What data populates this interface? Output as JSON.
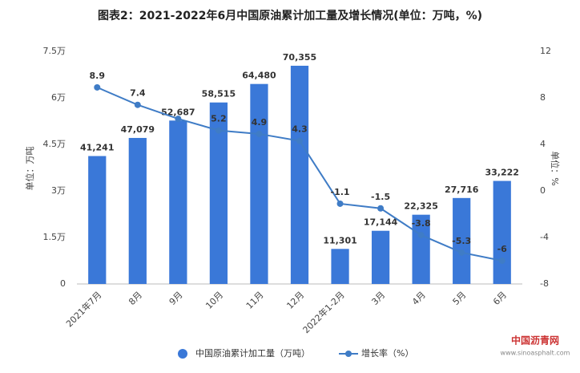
{
  "chart_data": {
    "type": "bar-line",
    "title": "图表2：2021-2022年6月中国原油累计加工量及增长情况(单位：万吨，%)",
    "ylabel": "单位：万吨",
    "y2label": "单位：%",
    "categories": [
      "2021年7月",
      "8月",
      "9月",
      "10月",
      "11月",
      "12月",
      "2022年1-2月",
      "3月",
      "4月",
      "5月",
      "6月"
    ],
    "series": [
      {
        "name": "中国原油累计加工量（万吨）",
        "type": "bar",
        "color": "#3a78d8",
        "values": [
          41241,
          47079,
          52687,
          58515,
          64480,
          70355,
          11301,
          17144,
          22325,
          27716,
          33222
        ],
        "value_labels": [
          "41,241",
          "47,079",
          "52,687",
          "58,515",
          "64,480",
          "70,355",
          "11,301",
          "17,144",
          "22,325",
          "27,716",
          "33,222"
        ]
      },
      {
        "name": "增长率（%）",
        "type": "line",
        "axis": "y2",
        "color": "#3f7cc6",
        "values": [
          8.9,
          7.4,
          6.2,
          5.2,
          4.9,
          4.3,
          -1.1,
          -1.5,
          -3.8,
          -5.3,
          -6
        ],
        "value_labels": [
          "8.9",
          "7.4",
          null,
          "5.2",
          "4.9",
          "4.3",
          "-1.1",
          "-1.5",
          "-3.8",
          "-5.3",
          "-6"
        ]
      }
    ],
    "ylim": [
      0,
      75000
    ],
    "yticks": [
      0,
      {
        "value": 15000,
        "label": "1.5万"
      },
      {
        "value": 30000,
        "label": "3万"
      },
      {
        "value": 45000,
        "label": "4.5万"
      },
      {
        "value": 60000,
        "label": "6万"
      },
      {
        "value": 75000,
        "label": "7.5万"
      }
    ],
    "y2lim": [
      -8,
      12
    ],
    "y2ticks": [
      -8,
      -4,
      0,
      4,
      8,
      12
    ],
    "grid": false,
    "legend": "bottom",
    "watermark": {
      "name": "中国沥青网",
      "url": "www.sinoasphalt.com"
    }
  }
}
